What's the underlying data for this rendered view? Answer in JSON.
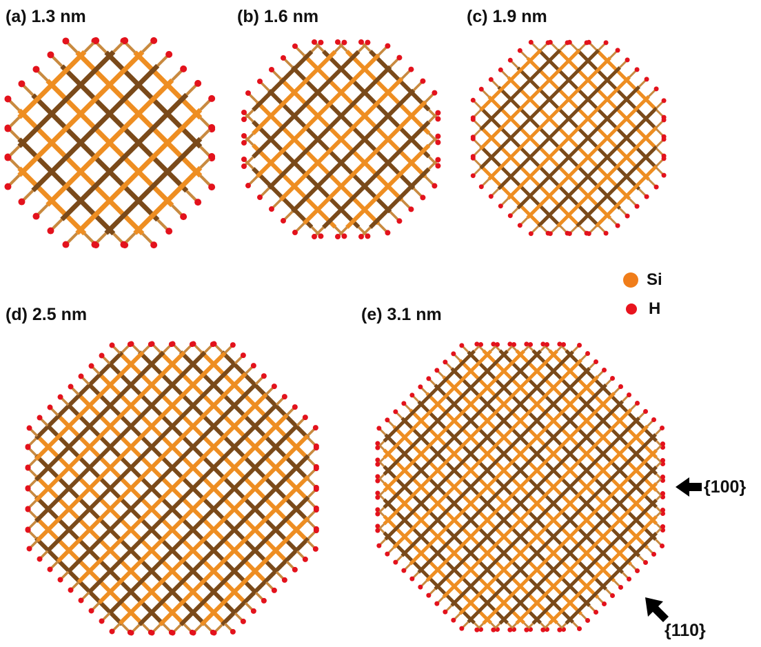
{
  "panels": [
    {
      "id": "a",
      "label": "(a) 1.3 nm"
    },
    {
      "id": "b",
      "label": "(b) 1.6 nm"
    },
    {
      "id": "c",
      "label": "(c) 1.9 nm"
    },
    {
      "id": "d",
      "label": "(d) 2.5 nm"
    },
    {
      "id": "e",
      "label": "(e) 3.1 nm"
    }
  ],
  "legend": [
    {
      "label": "Si",
      "color": "#f07d1a"
    },
    {
      "label": "H",
      "color": "#e8141e"
    }
  ],
  "annotations": [
    {
      "label": "{100}",
      "icon": "arrow-left-icon"
    },
    {
      "label": "{110}",
      "icon": "arrow-up-left-icon"
    }
  ],
  "colors": {
    "si_bond_light": "#ee8e22",
    "si_bond_dark": "#7a4a1a",
    "h_atom": "#e3121c",
    "sh_bond": "#c88a40"
  }
}
